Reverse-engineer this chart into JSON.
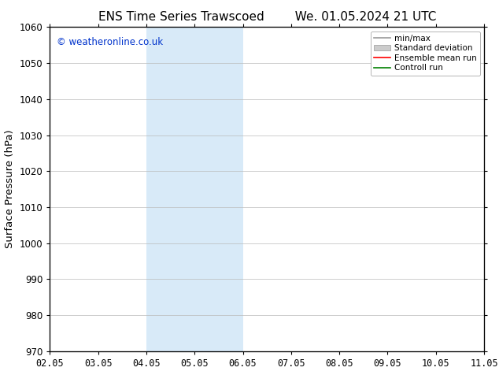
{
  "title_left": "ENS Time Series Trawscoed",
  "title_right": "We. 01.05.2024 21 UTC",
  "ylabel": "Surface Pressure (hPa)",
  "ylim": [
    970,
    1060
  ],
  "yticks": [
    970,
    980,
    990,
    1000,
    1010,
    1020,
    1030,
    1040,
    1050,
    1060
  ],
  "xtick_labels": [
    "02.05",
    "03.05",
    "04.05",
    "05.05",
    "06.05",
    "07.05",
    "08.05",
    "09.05",
    "10.05",
    "11.05"
  ],
  "xtick_positions": [
    0,
    1,
    2,
    3,
    4,
    5,
    6,
    7,
    8,
    9
  ],
  "xlim": [
    0,
    9
  ],
  "shaded_regions": [
    {
      "xmin": 2,
      "xmax": 4,
      "color": "#d8eaf8"
    },
    {
      "xmin": 9,
      "xmax": 9.5,
      "color": "#d8eaf8"
    }
  ],
  "watermark_text": "© weatheronline.co.uk",
  "watermark_color": "#0033cc",
  "legend_items": [
    {
      "label": "min/max",
      "color": "#999999",
      "lw": 1.2
    },
    {
      "label": "Standard deviation",
      "color": "#cccccc",
      "lw": 6
    },
    {
      "label": "Ensemble mean run",
      "color": "red",
      "lw": 1.2
    },
    {
      "label": "Controll run",
      "color": "green",
      "lw": 1.2
    }
  ],
  "bg_color": "#ffffff",
  "plot_bg_color": "#ffffff",
  "spine_color": "#000000",
  "grid_color": "#bbbbbb",
  "title_fontsize": 11,
  "tick_fontsize": 8.5,
  "ylabel_fontsize": 9.5,
  "legend_fontsize": 7.5
}
